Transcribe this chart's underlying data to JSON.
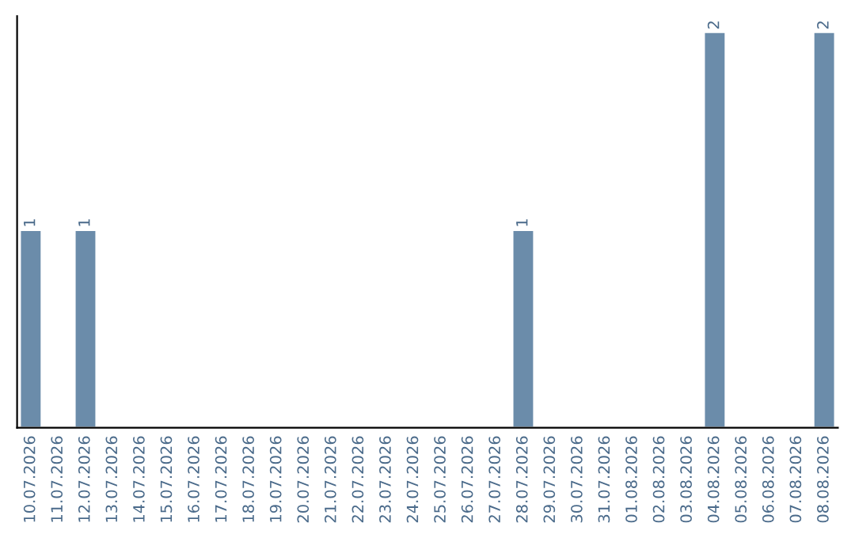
{
  "chart_data": {
    "type": "bar",
    "categories": [
      "10.07.2026",
      "11.07.2026",
      "12.07.2026",
      "13.07.2026",
      "14.07.2026",
      "15.07.2026",
      "16.07.2026",
      "17.07.2026",
      "18.07.2026",
      "19.07.2026",
      "20.07.2026",
      "21.07.2026",
      "22.07.2026",
      "23.07.2026",
      "24.07.2026",
      "25.07.2026",
      "26.07.2026",
      "27.07.2026",
      "28.07.2026",
      "29.07.2026",
      "30.07.2026",
      "31.07.2026",
      "01.08.2026",
      "02.08.2026",
      "03.08.2026",
      "04.08.2026",
      "05.08.2026",
      "06.08.2026",
      "07.08.2026",
      "08.08.2026"
    ],
    "values": [
      1,
      null,
      1,
      null,
      null,
      null,
      null,
      null,
      null,
      null,
      null,
      null,
      null,
      null,
      null,
      null,
      null,
      null,
      1,
      null,
      null,
      null,
      null,
      null,
      null,
      2,
      null,
      null,
      null,
      2
    ],
    "value_labels": [
      "1",
      null,
      "1",
      null,
      null,
      null,
      null,
      null,
      null,
      null,
      null,
      null,
      null,
      null,
      null,
      null,
      null,
      null,
      "1",
      null,
      null,
      null,
      null,
      null,
      null,
      "2",
      null,
      null,
      null,
      "2"
    ],
    "color": "#6b8caa",
    "tick_labels": "x",
    "grid": false,
    "legend": false
  }
}
